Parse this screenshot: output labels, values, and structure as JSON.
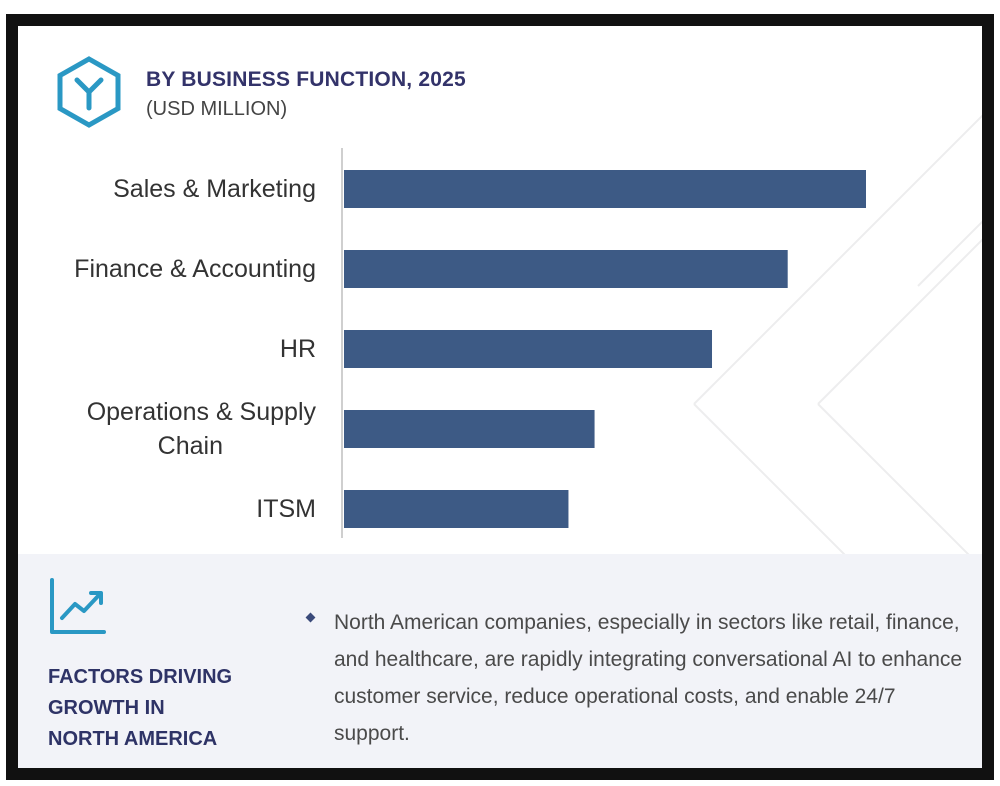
{
  "header": {
    "title": "BY BUSINESS FUNCTION, 2025",
    "subtitle": "(USD MILLION)",
    "icon": "hexagon-y-logo-icon"
  },
  "chart_data": {
    "type": "bar",
    "orientation": "horizontal",
    "title": "BY BUSINESS FUNCTION, 2025",
    "subtitle": "(USD MILLION)",
    "categories": [
      "Sales & Marketing",
      "Finance & Accounting",
      "HR",
      "Operations & Supply Chain",
      "ITSM"
    ],
    "category_lines": [
      [
        "Sales & Marketing"
      ],
      [
        "Finance & Accounting"
      ],
      [
        "HR"
      ],
      [
        "Operations & Supply",
        "Chain"
      ],
      [
        "ITSM"
      ]
    ],
    "values": [
      100,
      85,
      70.5,
      48,
      43
    ],
    "value_scale": "relative (no axis printed)",
    "xlim": [
      0,
      100
    ],
    "grid": false,
    "legend": "none",
    "bar_color": "#3d5a85"
  },
  "factors": {
    "icon": "trend-chart-icon",
    "title": "FACTORS DRIVING\nGROWTH IN\nNORTH AMERICA",
    "text": "North American companies, especially in sectors like retail, finance, and healthcare, are rapidly integrating conversational AI to enhance customer service, reduce operational costs, and enable 24/7 support."
  }
}
